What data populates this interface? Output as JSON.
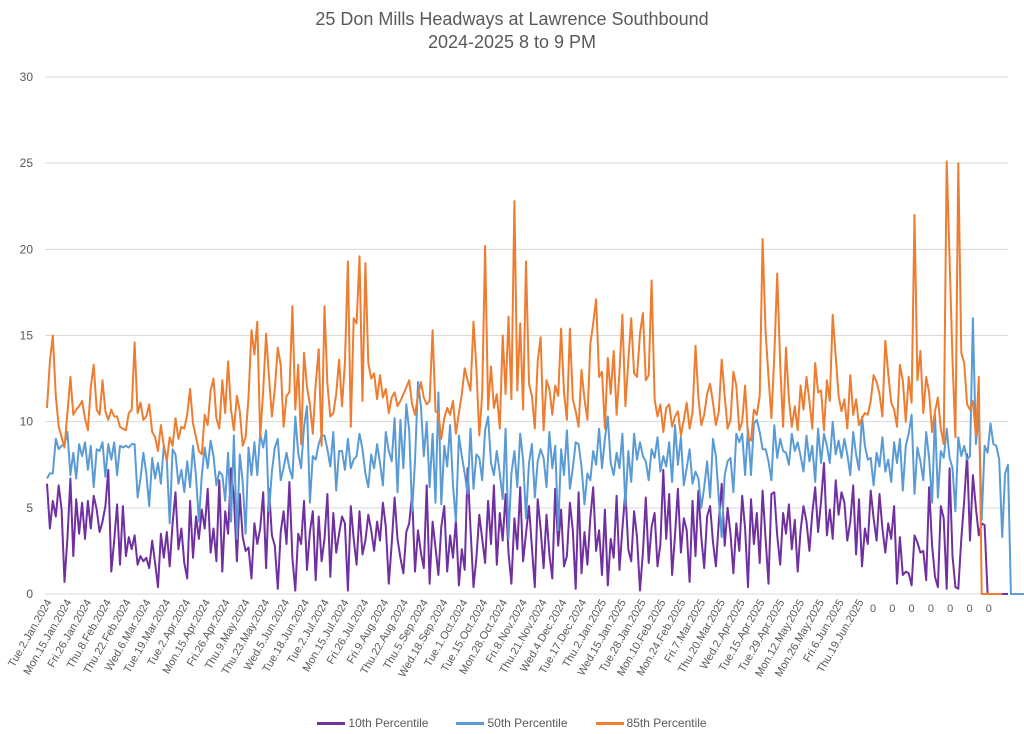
{
  "chart_data": {
    "type": "line",
    "title": "25 Don Mills Headways at Lawrence Southbound",
    "subtitle": "2024-2025 8 to 9 PM",
    "xlabel": "",
    "ylabel": "",
    "ylim": [
      0,
      30
    ],
    "yticks": [
      0,
      5,
      10,
      15,
      20,
      25,
      30
    ],
    "grid": true,
    "legend_position": "bottom",
    "x_tick_labels": [
      "Tue.2.Jan.2024",
      "Mon.15.Jan.2024",
      "Fri.26.Jan.2024",
      "Thu.8.Feb.2024",
      "Thu.22.Feb.2024",
      "Wed.6.Mar.2024",
      "Tue.19.Mar.2024",
      "Tue.2.Apr.2024",
      "Mon.15.Apr.2024",
      "Fri.26.Apr.2024",
      "Thu.9.May.2024",
      "Thu.23.May.2024",
      "Wed.5.Jun.2024",
      "Tue.18.Jun.2024",
      "Tue.2.Jul.2024",
      "Mon.15.Jul.2024",
      "Fri.26.Jul.2024",
      "Fri.9.Aug.2024",
      "Thu.22.Aug.2024",
      "Thu.5.Sep.2024",
      "Wed.18.Sep.2024",
      "Tue.1.Oct.2024",
      "Tue.15.Oct.2024",
      "Mon.28.Oct.2024",
      "Fri.8.Nov.2024",
      "Thu.21.Nov.2024",
      "Wed.4.Dec.2024",
      "Tue.17.Dec.2024",
      "Thu.2.Jan.2025",
      "Wed.15.Jan.2025",
      "Tue.28.Jan.2025",
      "Mon.10.Feb.2025",
      "Mon.24.Feb.2025",
      "Fri.7.Mar.2025",
      "Thu.20.Mar.2025",
      "Wed.2.Apr.2025",
      "Tue.15.Apr.2025",
      "Tue.29.Apr.2025",
      "Mon.12.May.2025",
      "Mon.26.May.2025",
      "Fri.6.Jun.2025",
      "Thu.19.Jun.2025",
      "0",
      "0",
      "0",
      "0",
      "0",
      "0",
      "0"
    ],
    "series": [
      {
        "name": "10th Percentile",
        "color": "#7030A0",
        "values": [
          6.4,
          3.8,
          5.4,
          4.5,
          6.3,
          4.9,
          0.7,
          3.2,
          6.7,
          2.2,
          5.5,
          3.5,
          5.3,
          3.2,
          5.4,
          3.8,
          5.7,
          4.9,
          3.6,
          4.2,
          5.1,
          7.2,
          1.3,
          3.1,
          5.2,
          1.7,
          5.1,
          2.2,
          3.3,
          2.6,
          3.4,
          1.7,
          2.2,
          1.9,
          2.1,
          1.5,
          3.1,
          1.8,
          0.4,
          3.5,
          2.1,
          3.6,
          1.6,
          4.1,
          5.9,
          2.6,
          3.8,
          1.8,
          0.9,
          5.4,
          2.1,
          4.5,
          3.2,
          4.9,
          3.8,
          6.1,
          2.4,
          3.8,
          1.9,
          6.6,
          1.3,
          4.8,
          3.5,
          7.3,
          5.6,
          1.9,
          5.8,
          3.3,
          2.5,
          2.7,
          0.9,
          4.1,
          2.9,
          3.8,
          5.9,
          1.5,
          6.1,
          3.4,
          2.8,
          0.3,
          3.6,
          4.8,
          2.9,
          6.5,
          2.1,
          0.2,
          3.5,
          2.9,
          5.4,
          1.4,
          3.6,
          4.8,
          0.8,
          4.5,
          1.9,
          3.2,
          5.8,
          1.0,
          4.7,
          2.4,
          3.5,
          4.5,
          4.1,
          0.2,
          5.1,
          3.2,
          1.7,
          4.8,
          2.3,
          3.1,
          4.6,
          3.7,
          2.5,
          4.2,
          3.1,
          5.3,
          3.9,
          0.6,
          2.9,
          5.6,
          3.2,
          2.1,
          1.2,
          3.6,
          4.1,
          5.8,
          1.3,
          3.7,
          2.4,
          1.5,
          6.3,
          0.6,
          4.2,
          2.7,
          1.1,
          3.9,
          5.1,
          1.3,
          3.4,
          2.1,
          4.3,
          0.5,
          2.6,
          1.4,
          7.3,
          3.8,
          0.4,
          2.1,
          4.6,
          3.2,
          1.8,
          5.4,
          2.9,
          6.3,
          1.7,
          4.7,
          3.1,
          5.8,
          2.4,
          0.6,
          4.4,
          2.6,
          6.2,
          1.9,
          3.5,
          5.1,
          2.7,
          0.4,
          5.5,
          3.8,
          1.5,
          4.6,
          2.3,
          0.9,
          6.1,
          2.8,
          4.9,
          1.6,
          2.2,
          5.3,
          3.7,
          0.3,
          5.9,
          1.2,
          3.6,
          1.7,
          4.4,
          6.2,
          2.5,
          3.7,
          1.1,
          4.9,
          0.5,
          3.2,
          2.1,
          5.7,
          1.4,
          3.8,
          6.0,
          2.6,
          1.9,
          4.8,
          3.3,
          0.2,
          2.4,
          5.6,
          1.8,
          3.9,
          4.7,
          1.6,
          2.9,
          7.2,
          3.2,
          5.8,
          1.1,
          3.4,
          6.1,
          2.4,
          4.4,
          3.7,
          0.7,
          5.4,
          2.2,
          6.0,
          3.3,
          1.5,
          4.5,
          5.1,
          3.0,
          1.6,
          4.2,
          6.4,
          2.8,
          5.0,
          3.5,
          1.2,
          4.1,
          2.5,
          5.7,
          3.8,
          0.4,
          5.5,
          2.9,
          4.7,
          1.8,
          6.0,
          3.2,
          0.6,
          5.8,
          5.9,
          3.4,
          1.7,
          4.7,
          3.5,
          5.2,
          2.6,
          4.3,
          1.3,
          3.7,
          5.1,
          4.2,
          2.5,
          4.7,
          6.2,
          3.6,
          5.4,
          7.6,
          3.4,
          4.9,
          3.2,
          6.6,
          4.6,
          5.9,
          5.3,
          3.1,
          4.2,
          6.3,
          2.3,
          5.5,
          1.6,
          3.8,
          2.9,
          6.0,
          4.4,
          3.1,
          5.8,
          3.8,
          2.4,
          4.1,
          3.2,
          5.1,
          0.6,
          3.3,
          1.1,
          1.3,
          1.2,
          0.5,
          3.4,
          3.0,
          2.4,
          2.5,
          0.8,
          6.2,
          2.8,
          1.0,
          0.4,
          5.1,
          4.4,
          0.3,
          7.3,
          2.2,
          0.4,
          0.3,
          3.2,
          5.4,
          8.1,
          3.1,
          6.9,
          5.0,
          3.4,
          4.1,
          4.0,
          0.0,
          0,
          0,
          0,
          0,
          0,
          0,
          0
        ]
      },
      {
        "name": "50th Percentile",
        "color": "#5B9BD5",
        "values": [
          6.7,
          7.0,
          7.0,
          9.0,
          8.4,
          8.6,
          8.7,
          9.4,
          6.9,
          8.2,
          6.7,
          8.7,
          8.0,
          8.8,
          7.2,
          8.6,
          6.2,
          8.4,
          8.3,
          8.8,
          6.8,
          8.7,
          7.8,
          8.8,
          6.9,
          8.6,
          8.5,
          8.6,
          8.5,
          8.7,
          8.7,
          5.6,
          6.7,
          8.2,
          7.0,
          5.1,
          7.9,
          6.7,
          7.6,
          6.4,
          8.6,
          7.8,
          4.1,
          8.4,
          8.1,
          6.4,
          7.2,
          5.9,
          7.7,
          6.2,
          8.6,
          6.8,
          4.2,
          6.9,
          8.5,
          7.3,
          8.9,
          8.0,
          6.3,
          7.1,
          6.9,
          5.4,
          8.2,
          4.2,
          9.2,
          3.2,
          8.1,
          6.5,
          3.5,
          8.5,
          6.9,
          8.8,
          6.9,
          9.3,
          8.5,
          9.5,
          4.8,
          7.1,
          8.5,
          9.0,
          6.6,
          7.3,
          8.2,
          7.3,
          6.7,
          10.3,
          8.2,
          7.3,
          9.7,
          10.9,
          5.3,
          8.0,
          7.8,
          8.7,
          9.2,
          9.2,
          8.4,
          7.4,
          9.4,
          6.0,
          8.3,
          8.3,
          7.2,
          9.0,
          7.3,
          7.8,
          8.0,
          9.3,
          8.4,
          7.0,
          6.2,
          8.1,
          7.3,
          8.7,
          7.6,
          6.3,
          9.4,
          8.3,
          7.7,
          10.2,
          5.9,
          10.1,
          7.3,
          11.0,
          9.5,
          4.8,
          7.7,
          12.3,
          10.9,
          8.0,
          10.0,
          6.2,
          9.3,
          5.3,
          11.7,
          5.2,
          8.6,
          7.4,
          9.8,
          6.3,
          4.2,
          9.2,
          8.0,
          7.0,
          5.8,
          9.6,
          6.1,
          8.1,
          7.9,
          6.6,
          9.5,
          10.3,
          7.6,
          6.9,
          8.3,
          7.0,
          5.5,
          9.6,
          3.2,
          7.0,
          8.3,
          6.2,
          9.3,
          7.8,
          4.4,
          7.6,
          8.7,
          5.6,
          7.7,
          8.4,
          7.9,
          6.2,
          9.4,
          7.3,
          8.6,
          3.7,
          8.4,
          6.9,
          9.5,
          6.1,
          7.3,
          8.8,
          8.7,
          7.4,
          5.2,
          7.0,
          6.6,
          8.3,
          7.5,
          9.6,
          7.3,
          9.0,
          10.3,
          7.6,
          6.9,
          8.2,
          7.3,
          9.3,
          5.1,
          8.3,
          6.5,
          9.3,
          7.8,
          8.8,
          8.0,
          7.7,
          6.6,
          8.4,
          7.9,
          9.1,
          7.1,
          8.0,
          7.4,
          8.8,
          6.5,
          9.8,
          7.5,
          9.1,
          6.3,
          7.3,
          8.4,
          6.4,
          7.1,
          6.7,
          5.0,
          6.2,
          7.7,
          5.6,
          9.0,
          8.0,
          5.5,
          3.3,
          6.9,
          7.7,
          7.9,
          5.9,
          9.3,
          8.8,
          9.3,
          6.9,
          9.6,
          6.9,
          9.9,
          10.1,
          9.4,
          8.4,
          8.4,
          7.7,
          6.6,
          9.8,
          7.9,
          9.0,
          8.3,
          8.2,
          7.5,
          9.3,
          8.3,
          8.8,
          8.0,
          7.1,
          9.2,
          7.7,
          8.6,
          6.5,
          9.6,
          7.6,
          9.3,
          8.6,
          7.6,
          10.0,
          8.1,
          8.9,
          7.9,
          9.0,
          8.1,
          6.9,
          9.4,
          8.1,
          7.2,
          10.3,
          8.6,
          7.8,
          7.9,
          6.3,
          8.2,
          7.4,
          9.1,
          7.1,
          7.8,
          6.5,
          8.8,
          7.6,
          9.0,
          6.0,
          8.6,
          9.3,
          10.4,
          5.8,
          8.5,
          7.7,
          6.6,
          9.4,
          7.9,
          5.3,
          10.4,
          5.6,
          8.3,
          7.9,
          9.6,
          7.9,
          7.3,
          4.8,
          9.1,
          8.0,
          8.6,
          7.8,
          8.0,
          16.0,
          8.7,
          10.5,
          4.3,
          8.6,
          8.2,
          9.9,
          8.7,
          8.6,
          7.8,
          3.3,
          7.0,
          7.5,
          0.0,
          0,
          0,
          0,
          0,
          0,
          0,
          0
        ]
      },
      {
        "name": "85th Percentile",
        "color": "#ED7D31",
        "values": [
          10.8,
          13.5,
          15.0,
          11.5,
          9.7,
          9.1,
          8.5,
          10.5,
          12.6,
          10.4,
          10.7,
          10.9,
          11.2,
          10.2,
          9.5,
          12.0,
          13.3,
          10.7,
          10.4,
          12.4,
          10.6,
          10.1,
          10.7,
          10.3,
          10.3,
          9.7,
          9.6,
          9.5,
          10.5,
          10.7,
          14.6,
          10.5,
          11.1,
          10.1,
          10.3,
          11.0,
          9.4,
          9.1,
          8.3,
          9.8,
          8.6,
          7.7,
          9.1,
          8.6,
          10.2,
          9.0,
          9.7,
          9.6,
          10.4,
          11.9,
          9.9,
          9.1,
          8.3,
          8.1,
          10.4,
          9.8,
          11.8,
          12.5,
          10.2,
          9.6,
          12.4,
          10.5,
          13.5,
          10.7,
          9.5,
          11.5,
          10.6,
          8.6,
          9.1,
          11.4,
          15.3,
          13.9,
          15.8,
          9.1,
          11.8,
          15.1,
          12.6,
          10.3,
          11.9,
          14.3,
          13.3,
          9.7,
          11.5,
          11.7,
          16.7,
          10.7,
          13.3,
          8.7,
          14.0,
          12.0,
          11.0,
          9.3,
          12.2,
          14.2,
          8.6,
          16.7,
          12.2,
          10.3,
          10.5,
          11.6,
          13.6,
          10.9,
          13.4,
          19.3,
          9.7,
          16.0,
          15.7,
          19.6,
          11.2,
          19.2,
          13.4,
          12.5,
          12.8,
          11.3,
          12.7,
          11.4,
          11.9,
          10.5,
          11.4,
          11.7,
          10.9,
          11.2,
          11.6,
          12.0,
          12.4,
          11.0,
          10.4,
          11.5,
          12.3,
          11.4,
          11.0,
          11.2,
          15.3,
          10.6,
          10.5,
          9.0,
          10.2,
          10.8,
          10.4,
          11.2,
          9.3,
          10.5,
          11.6,
          13.1,
          12.4,
          11.8,
          15.8,
          13.1,
          9.2,
          11.6,
          20.2,
          10.7,
          13.2,
          10.8,
          11.6,
          9.6,
          15.0,
          11.6,
          16.1,
          11.3,
          22.8,
          11.8,
          15.7,
          10.7,
          19.3,
          12.2,
          11.5,
          9.6,
          13.5,
          14.9,
          9.5,
          12.4,
          11.9,
          10.4,
          12.1,
          11.5,
          15.4,
          11.7,
          10.1,
          15.4,
          11.3,
          10.6,
          9.7,
          13.0,
          11.3,
          10.1,
          14.5,
          15.7,
          17.1,
          12.6,
          12.9,
          9.6,
          13.7,
          11.6,
          14.1,
          10.4,
          12.9,
          16.2,
          10.9,
          13.5,
          16.0,
          12.8,
          12.6,
          15.1,
          16.3,
          12.4,
          12.7,
          18.2,
          11.3,
          10.3,
          11.0,
          9.4,
          10.8,
          11.0,
          9.7,
          10.3,
          10.6,
          9.2,
          10.1,
          11.1,
          9.6,
          10.5,
          14.4,
          11.4,
          9.8,
          10.4,
          11.6,
          12.2,
          11.1,
          9.8,
          10.6,
          13.6,
          11.5,
          9.6,
          10.1,
          12.9,
          12.1,
          9.5,
          10.0,
          12.1,
          9.1,
          8.9,
          10.7,
          10.4,
          11.5,
          20.6,
          15.2,
          12.6,
          10.2,
          13.8,
          18.6,
          13.3,
          9.7,
          14.3,
          11.3,
          9.7,
          10.9,
          9.5,
          12.1,
          10.7,
          12.6,
          11.2,
          9.6,
          13.4,
          11.7,
          11.8,
          9.5,
          12.4,
          11.2,
          16.2,
          13.8,
          11.5,
          10.6,
          11.3,
          9.6,
          12.7,
          10.4,
          11.3,
          9.8,
          10.2,
          10.5,
          10.4,
          11.2,
          12.7,
          12.3,
          11.6,
          10.3,
          14.7,
          12.8,
          11.1,
          10.7,
          9.7,
          13.3,
          12.4,
          10.0,
          12.6,
          11.1,
          22.0,
          12.4,
          14.1,
          10.5,
          12.6,
          11.7,
          9.4,
          10.6,
          11.4,
          9.6,
          8.7,
          25.1,
          19.4,
          13.6,
          9.1,
          25.0,
          14.0,
          13.4,
          11.0,
          10.7,
          11.2,
          9.2,
          12.6,
          0.0,
          0,
          0,
          0,
          0,
          0,
          0,
          0
        ]
      }
    ]
  },
  "legend": {
    "items": [
      {
        "label": "10th Percentile",
        "color": "#7030A0"
      },
      {
        "label": "50th Percentile",
        "color": "#5B9BD5"
      },
      {
        "label": "85th Percentile",
        "color": "#ED7D31"
      }
    ]
  },
  "colors": {
    "grid": "#D9D9D9",
    "text": "#595959"
  }
}
